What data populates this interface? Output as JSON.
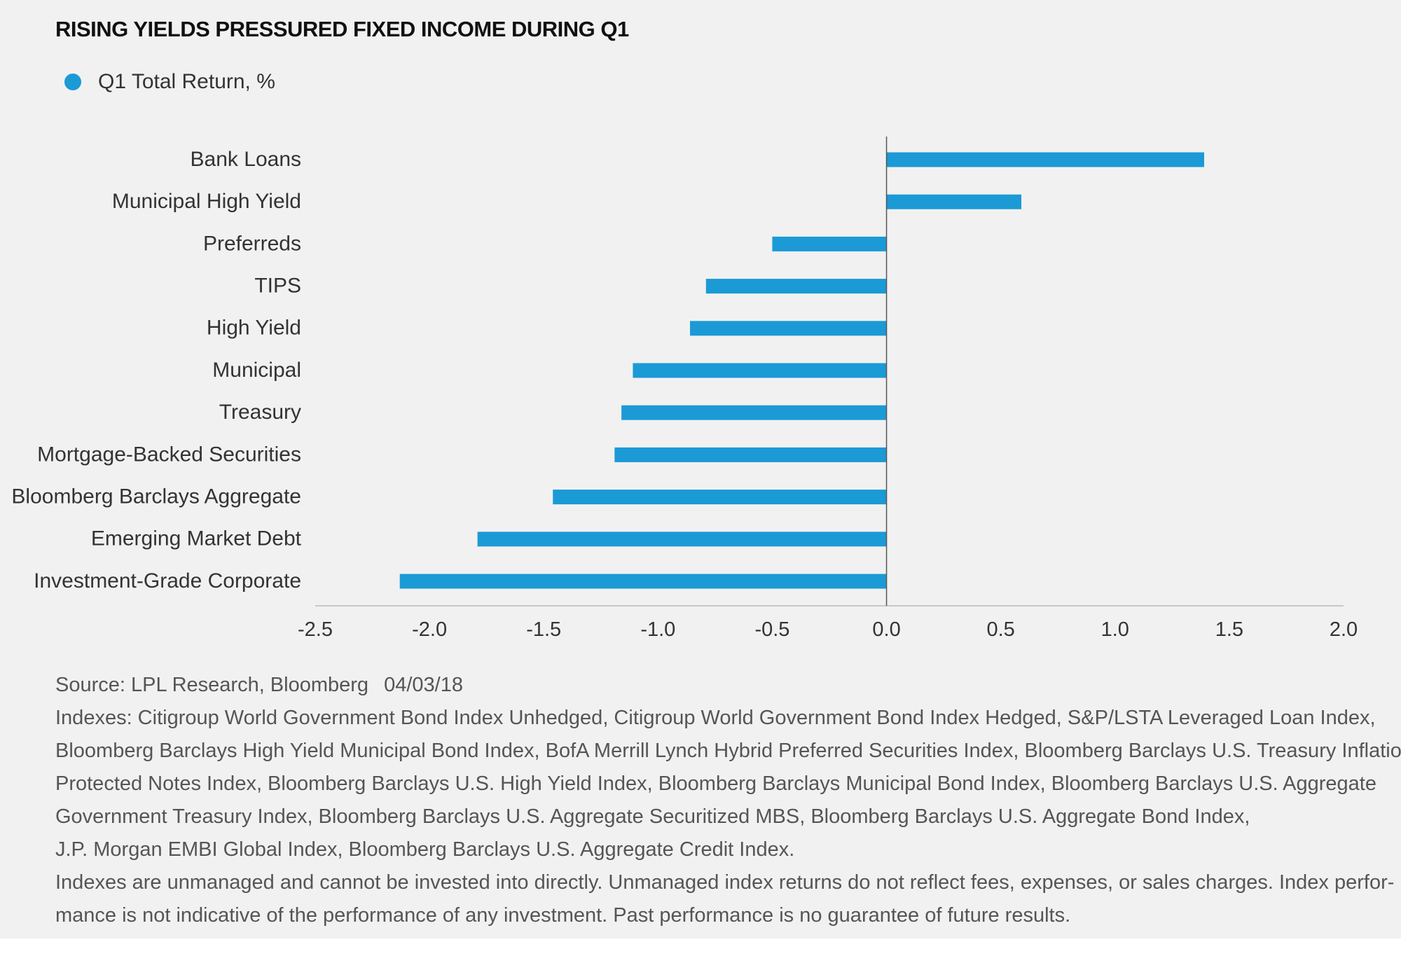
{
  "title": "RISING YIELDS PRESSURED FIXED INCOME DURING Q1",
  "legend": {
    "label": "Q1 Total Return, %",
    "color": "#1b9ad6"
  },
  "colors": {
    "bar": "#1b9ad6",
    "background": "#f1f1f1",
    "axis": "#c8c8c8",
    "zero_line": "#555555"
  },
  "chart_data": {
    "type": "bar",
    "orientation": "horizontal",
    "categories": [
      "Bank Loans",
      "Municipal High Yield",
      "Preferreds",
      "TIPS",
      "High Yield",
      "Municipal",
      "Treasury",
      "Mortgage-Backed Securities",
      "Bloomberg Barclays Aggregate",
      "Emerging Market Debt",
      "Investment-Grade Corporate"
    ],
    "values": [
      1.39,
      0.59,
      -0.5,
      -0.79,
      -0.86,
      -1.11,
      -1.16,
      -1.19,
      -1.46,
      -1.79,
      -2.13
    ],
    "series_name": "Q1 Total Return, %",
    "xlim": [
      -2.5,
      2.0
    ],
    "x_ticks": [
      "-2.5",
      "-2.0",
      "-1.5",
      "-1.0",
      "-0.5",
      "0.0",
      "0.5",
      "1.0",
      "1.5",
      "2.0"
    ],
    "x_tick_values": [
      -2.5,
      -2.0,
      -1.5,
      -1.0,
      -0.5,
      0.0,
      0.5,
      1.0,
      1.5,
      2.0
    ],
    "xlabel": "",
    "ylabel": "",
    "grid": false,
    "legend_position": "top-left"
  },
  "notes": {
    "source": "Source: LPL Research, Bloomberg",
    "date": "04/03/18",
    "indexes_lines": [
      "Indexes: Citigroup World Government Bond Index Unhedged, Citigroup World Government Bond Index Hedged, S&P/LSTA Leveraged Loan Index,",
      "Bloomberg Barclays High Yield Municipal Bond Index, BofA Merrill Lynch Hybrid Preferred Securities Index, Bloomberg Barclays U.S. Treasury Inflation",
      "Protected Notes Index, Bloomberg Barclays U.S. High Yield Index, Bloomberg Barclays Municipal Bond Index, Bloomberg Barclays U.S. Aggregate",
      "Government Treasury Index, Bloomberg Barclays U.S. Aggregate Securitized MBS, Bloomberg Barclays U.S. Aggregate Bond Index,",
      "J.P. Morgan EMBI Global Index, Bloomberg Barclays U.S. Aggregate Credit Index."
    ],
    "disclaimer_lines": [
      "Indexes are unmanaged and cannot be invested into directly. Unmanaged index returns do not reflect fees, expenses, or sales charges. Index perfor-",
      "mance is not indicative of the performance of any investment. Past performance is no guarantee of future results."
    ]
  }
}
